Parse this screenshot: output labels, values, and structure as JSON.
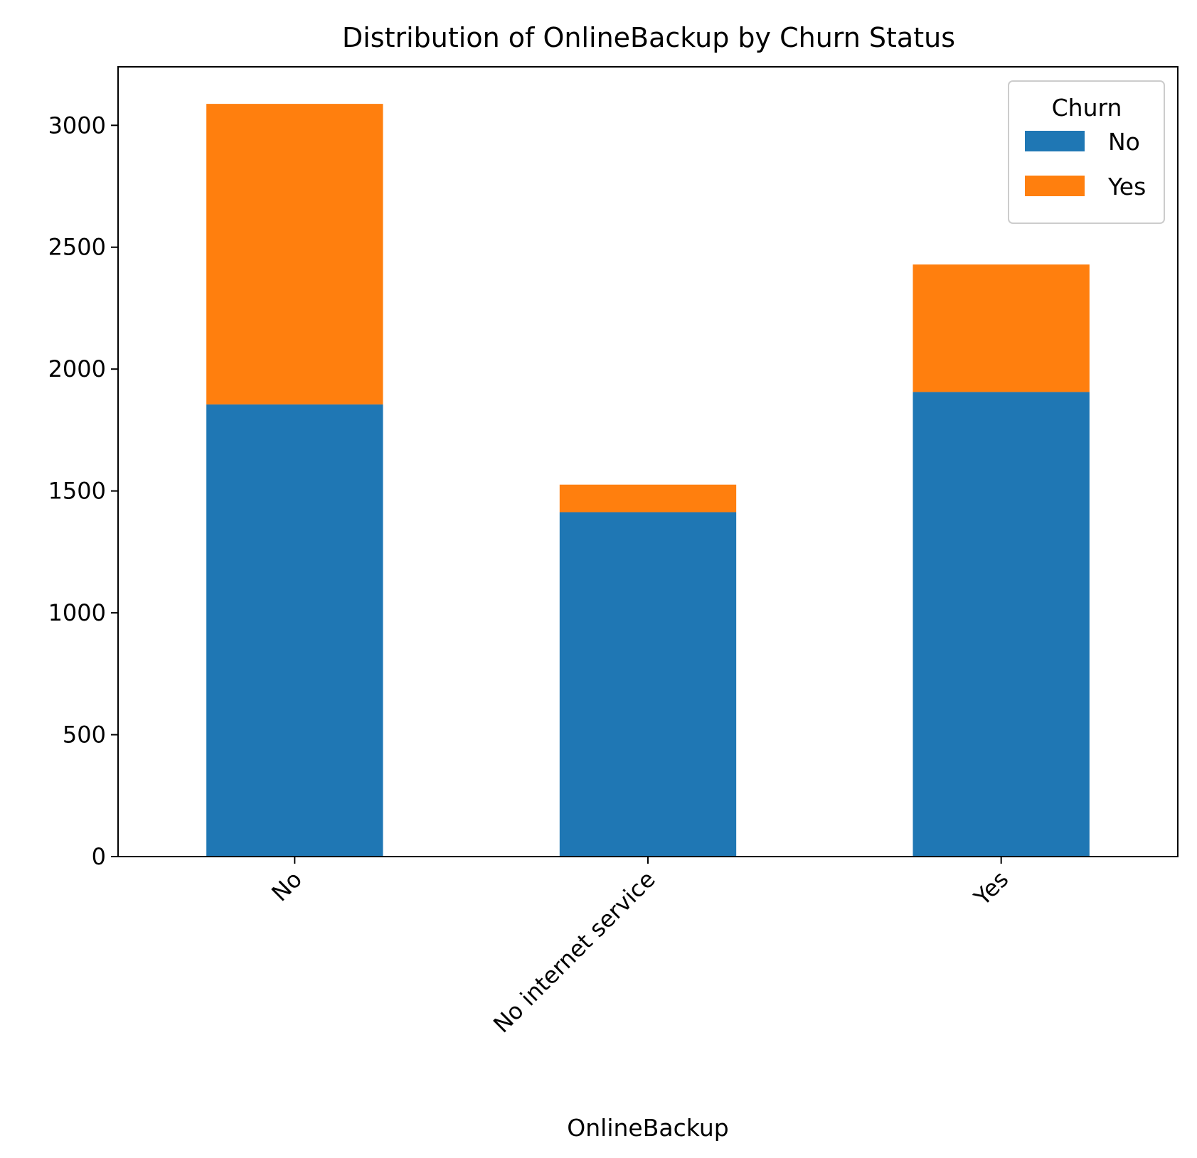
{
  "chart_data": {
    "type": "bar",
    "stacked": true,
    "title": "Distribution of OnlineBackup by Churn Status",
    "xlabel": "OnlineBackup",
    "ylabel": "",
    "categories": [
      "No",
      "No internet service",
      "Yes"
    ],
    "series": [
      {
        "name": "No",
        "color": "#1f77b4",
        "values": [
          1855,
          1413,
          1906
        ]
      },
      {
        "name": "Yes",
        "color": "#ff7f0e",
        "values": [
          1233,
          113,
          523
        ]
      }
    ],
    "ylim": [
      0,
      3240
    ],
    "yticks": [
      0,
      500,
      1000,
      1500,
      2000,
      2500,
      3000
    ],
    "grid": false,
    "legend": {
      "title": "Churn",
      "placement": "top-right"
    },
    "x_tick_rotation_deg": 45
  }
}
